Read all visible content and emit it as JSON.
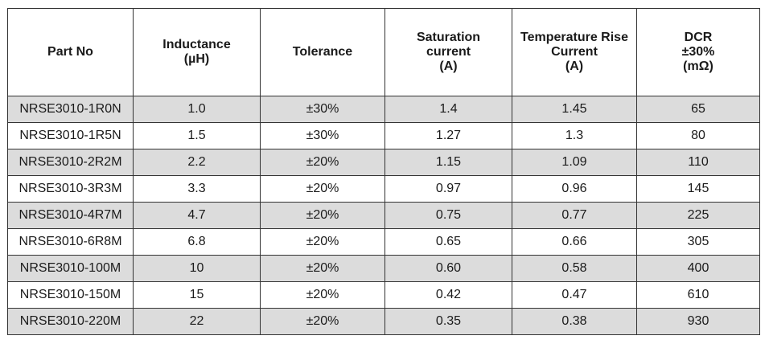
{
  "headers": [
    [
      "Part No"
    ],
    [
      "Inductance",
      "(µH)"
    ],
    [
      "Tolerance"
    ],
    [
      "Saturation",
      "current",
      "(A)"
    ],
    [
      "Temperature Rise",
      "Current",
      "(A)"
    ],
    [
      "DCR",
      "±30%",
      "(mΩ)"
    ]
  ],
  "rows": [
    [
      "NRSE3010-1R0N",
      "1.0",
      "±30%",
      "1.4",
      "1.45",
      "65"
    ],
    [
      "NRSE3010-1R5N",
      "1.5",
      "±30%",
      "1.27",
      "1.3",
      "80"
    ],
    [
      "NRSE3010-2R2M",
      "2.2",
      "±20%",
      "1.15",
      "1.09",
      "110"
    ],
    [
      "NRSE3010-3R3M",
      "3.3",
      "±20%",
      "0.97",
      "0.96",
      "145"
    ],
    [
      "NRSE3010-4R7M",
      "4.7",
      "±20%",
      "0.75",
      "0.77",
      "225"
    ],
    [
      "NRSE3010-6R8M",
      "6.8",
      "±20%",
      "0.65",
      "0.66",
      "305"
    ],
    [
      "NRSE3010-100M",
      "10",
      "±20%",
      "0.60",
      "0.58",
      "400"
    ],
    [
      "NRSE3010-150M",
      "15",
      "±20%",
      "0.42",
      "0.47",
      "610"
    ],
    [
      "NRSE3010-220M",
      "22",
      "±20%",
      "0.35",
      "0.38",
      "930"
    ]
  ],
  "colors": {
    "shaded_row": "#dcdcdc",
    "border": "#333333"
  }
}
